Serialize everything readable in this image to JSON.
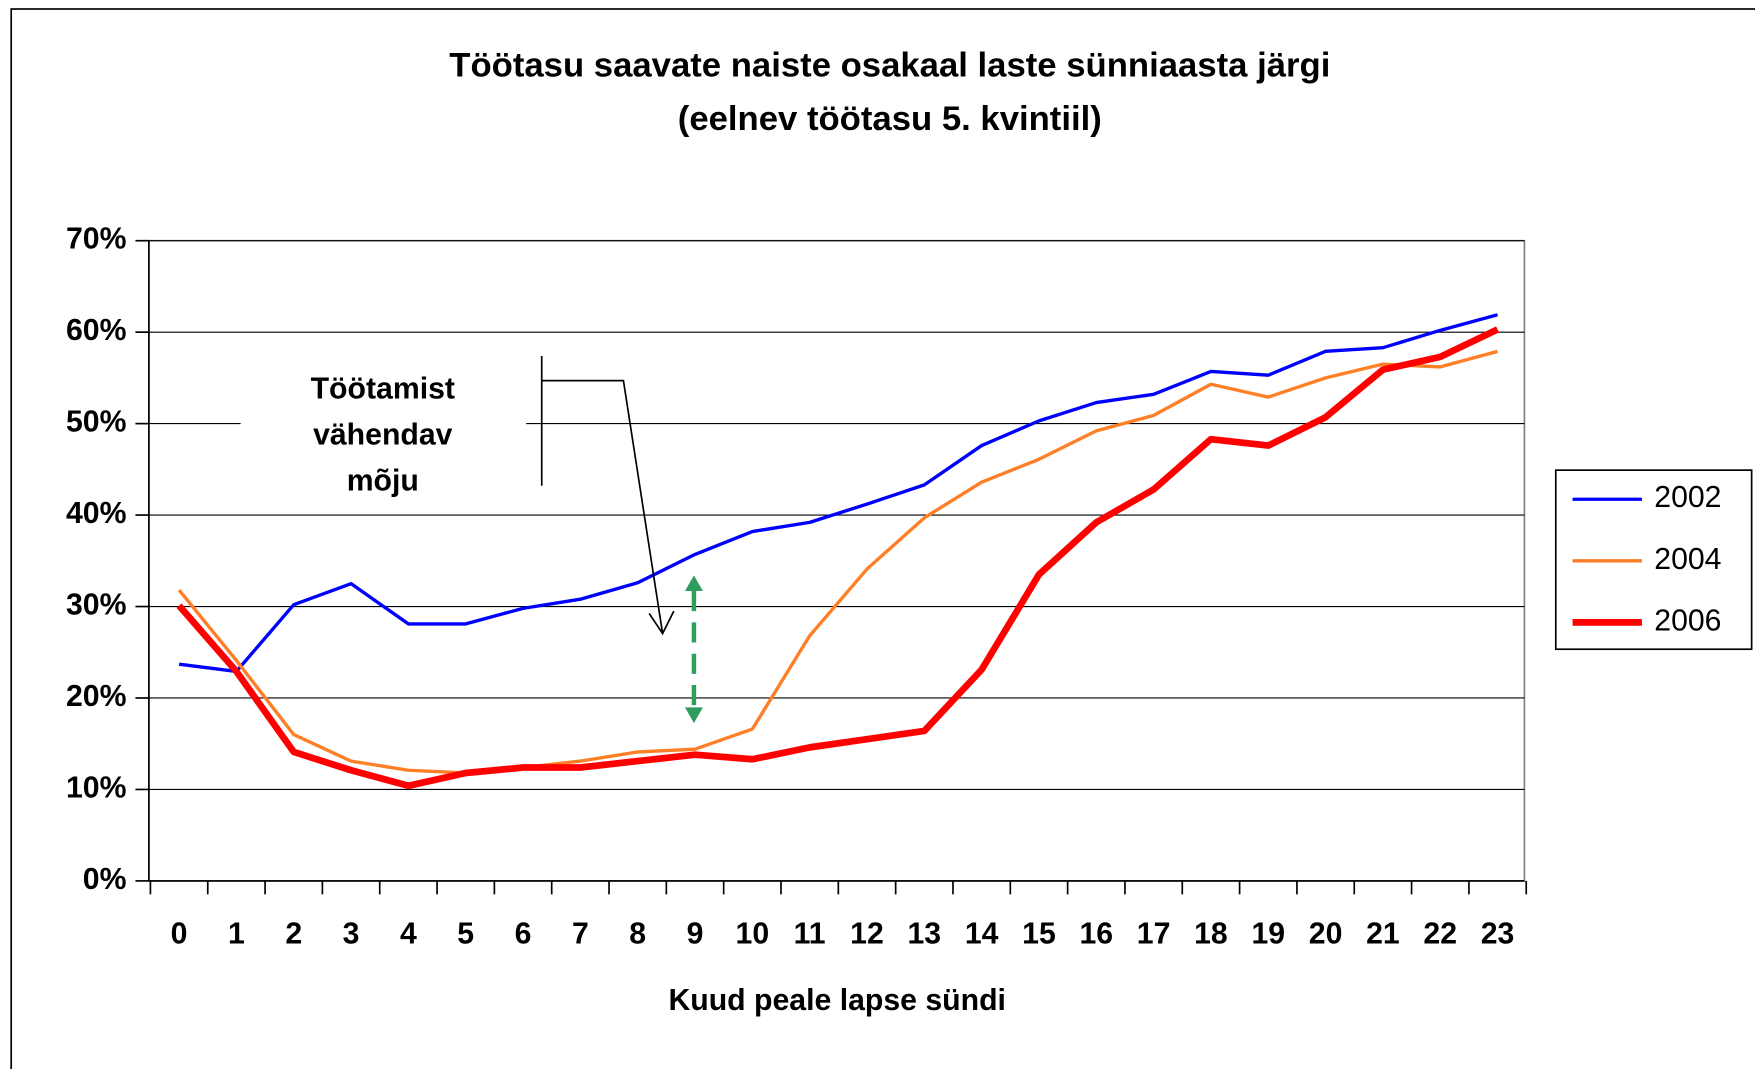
{
  "chart_data": {
    "type": "line",
    "title": [
      "Töötasu saavate naiste osakaal laste sünniaasta järgi",
      "(eelnev töötasu 5. kvintiil)"
    ],
    "x_label": "Kuud peale lapse sündi",
    "annotation": [
      "Töötamist",
      "vähendav",
      "mõju"
    ],
    "categories": [
      "0",
      "1",
      "2",
      "3",
      "4",
      "5",
      "6",
      "7",
      "8",
      "9",
      "10",
      "11",
      "12",
      "13",
      "14",
      "15",
      "16",
      "17",
      "18",
      "19",
      "20",
      "21",
      "22",
      "23"
    ],
    "series": [
      {
        "name": "2002",
        "color": "#0000ff",
        "values": [
          23.7,
          22.9,
          30.2,
          32.5,
          28.1,
          28.1,
          29.8,
          30.8,
          32.6,
          35.7,
          38.2,
          39.2,
          41.2,
          43.3,
          47.6,
          50.3,
          52.3,
          53.2,
          55.7,
          55.3,
          57.9,
          58.3,
          60.2,
          61.9
        ]
      },
      {
        "name": "2004",
        "color": "#ff7f27",
        "values": [
          31.8,
          24.1,
          16.0,
          13.1,
          12.1,
          11.8,
          12.4,
          13.1,
          14.1,
          14.4,
          16.6,
          26.8,
          34.1,
          39.7,
          43.6,
          46.1,
          49.2,
          50.9,
          54.3,
          52.9,
          55.0,
          56.5,
          56.2,
          57.9
        ]
      },
      {
        "name": "2006",
        "color": "#ff0000",
        "values": [
          30.1,
          22.9,
          14.1,
          12.1,
          10.4,
          11.8,
          12.4,
          12.4,
          13.1,
          13.8,
          13.3,
          14.6,
          15.5,
          16.4,
          23.1,
          33.5,
          39.2,
          42.8,
          48.3,
          47.6,
          50.7,
          55.9,
          57.3,
          60.3
        ]
      }
    ],
    "ylim": [
      0,
      70
    ],
    "yticks": [
      {
        "value": 0,
        "label": "0%"
      },
      {
        "value": 10,
        "label": "10%"
      },
      {
        "value": 20,
        "label": "20%"
      },
      {
        "value": 30,
        "label": "30%"
      },
      {
        "value": 40,
        "label": "40%"
      },
      {
        "value": 50,
        "label": "50%"
      },
      {
        "value": 60,
        "label": "60%"
      },
      {
        "value": 70,
        "label": "70%"
      }
    ],
    "grid": true,
    "legend": "right"
  }
}
